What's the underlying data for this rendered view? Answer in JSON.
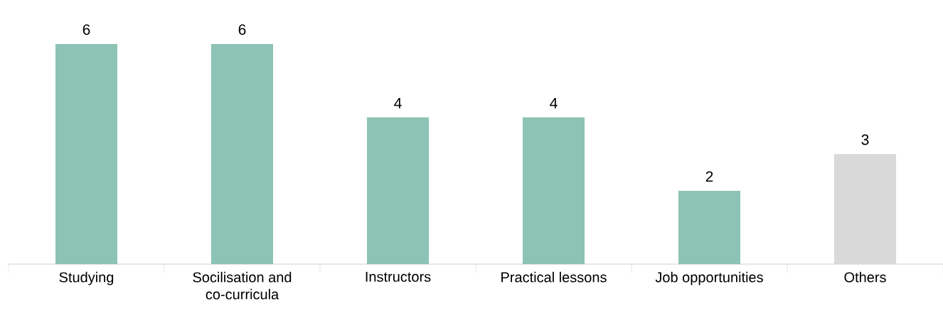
{
  "chart_data": {
    "type": "bar",
    "categories": [
      "Studying",
      "Socilisation and co-curricula",
      "Instructors",
      "Practical lessons",
      "Job opportunities",
      "Others"
    ],
    "values": [
      6,
      6,
      4,
      4,
      2,
      3
    ],
    "colors": [
      "#8cc3b5",
      "#8cc3b5",
      "#8cc3b5",
      "#8cc3b5",
      "#8cc3b5",
      "#d9d9d9"
    ],
    "data_labels": true
  }
}
